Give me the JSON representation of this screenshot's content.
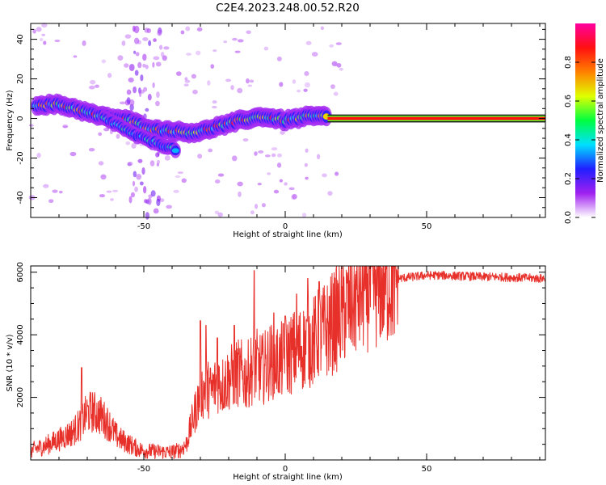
{
  "title": "C2E4.2023.248.00.52.R20",
  "colors": {
    "snr_line": "#e8302a",
    "spectrogram_background": "#ffffff",
    "frame": "#000000"
  },
  "chart_data": [
    {
      "type": "heatmap",
      "xlabel": "Height of straight line (km)",
      "ylabel": "Frequency (Hz)",
      "xlim": [
        -90,
        92
      ],
      "ylim": [
        -50,
        48
      ],
      "xticks": [
        -50,
        0,
        50
      ],
      "xtick_labels": [
        "-50",
        "0",
        "50"
      ],
      "yticks": [
        -40,
        -20,
        0,
        20,
        40
      ],
      "ytick_labels": [
        "-40",
        "-20",
        "0",
        "20",
        "40"
      ],
      "grid": false,
      "colormap": "rainbow (white at 0, purple-blue-cyan-green-yellow-red-magenta to 1)",
      "main_track": {
        "description": "spectral ridge (Hz) vs height (km)",
        "x": [
          -88,
          -80,
          -74,
          -70,
          -65,
          -60,
          -55,
          -50,
          -45,
          -40,
          -36,
          -32,
          -28,
          -24,
          -20,
          -16,
          -12,
          -8,
          -4,
          0,
          4,
          8,
          12,
          15
        ],
        "y": [
          7,
          7,
          5,
          3,
          1,
          0,
          -1,
          -4,
          -6,
          -6,
          -7,
          -7,
          -6,
          -4,
          -3,
          -1,
          0,
          1,
          0,
          -1,
          0,
          1,
          1,
          1
        ]
      },
      "secondary_track": {
        "description": "weaker descending branch (Hz) vs height (km)",
        "x": [
          -64,
          -58,
          -54,
          -50,
          -46,
          -42,
          -38
        ],
        "y": [
          0,
          -4,
          -8,
          -10,
          -12,
          -14,
          -16
        ]
      },
      "steady_band": {
        "x_from": 15,
        "x_to": 92,
        "y": 0,
        "amplitude": 1.0
      }
    },
    {
      "type": "colorbar",
      "label": "Normalized spectral amplitude",
      "range": [
        0,
        1
      ],
      "ticks": [
        0.0,
        0.2,
        0.4,
        0.6,
        0.8
      ],
      "tick_labels": [
        "0.0",
        "0.2",
        "0.4",
        "0.6",
        "0.8"
      ],
      "stops": [
        "#ffffff",
        "#a020f0",
        "#2020ff",
        "#00e0ff",
        "#00ff40",
        "#e0ff00",
        "#ff8000",
        "#ff1010",
        "#ff00a0"
      ]
    },
    {
      "type": "line",
      "xlabel": "Height of straight line (km)",
      "ylabel": "SNR (10 * v/v)",
      "xlim": [
        -90,
        92
      ],
      "ylim": [
        0,
        6200
      ],
      "xticks": [
        -50,
        0,
        50
      ],
      "xtick_labels": [
        "-50",
        "0",
        "50"
      ],
      "yticks": [
        2000,
        4000,
        6000
      ],
      "ytick_labels": [
        "2000",
        "4000",
        "6000"
      ],
      "grid": false,
      "series": [
        {
          "x": [
            -90,
            -85,
            -80,
            -75,
            -72,
            -70,
            -68,
            -65,
            -62,
            -60,
            -58,
            -55,
            -52,
            -50,
            -47,
            -45,
            -42,
            -40,
            -37,
            -35,
            -33,
            -31,
            -30,
            -28,
            -26,
            -24,
            -22,
            -20,
            -18,
            -16,
            -14,
            -12,
            -10,
            -8,
            -6,
            -4,
            -2,
            0,
            2,
            4,
            6,
            8,
            10,
            12,
            14,
            16,
            18,
            20,
            22,
            24,
            26,
            28,
            30,
            33,
            36,
            40,
            45,
            50,
            55,
            60,
            65,
            70,
            75,
            80,
            85,
            90,
            92
          ],
          "y": [
            300,
            450,
            650,
            900,
            1200,
            1500,
            1550,
            1400,
            1100,
            800,
            650,
            500,
            350,
            300,
            280,
            270,
            250,
            260,
            320,
            500,
            1200,
            1800,
            2100,
            2300,
            2200,
            2500,
            2400,
            2600,
            2700,
            2800,
            2600,
            2900,
            3000,
            2900,
            3100,
            3200,
            3100,
            3300,
            3400,
            3500,
            3600,
            3700,
            3800,
            4000,
            4100,
            4300,
            4500,
            4700,
            4900,
            5100,
            5300,
            5450,
            5550,
            5650,
            5750,
            5800,
            5850,
            5900,
            5900,
            5880,
            5870,
            5850,
            5850,
            5830,
            5820,
            5800,
            5800
          ],
          "spikes": [
            {
              "x": -72,
              "y": 2950
            },
            {
              "x": -30,
              "y": 4450
            },
            {
              "x": -28,
              "y": 4300
            },
            {
              "x": -24,
              "y": 3900
            },
            {
              "x": -18,
              "y": 4300
            },
            {
              "x": -11,
              "y": 6050
            },
            {
              "x": -4,
              "y": 4700
            },
            {
              "x": 0,
              "y": 4600
            },
            {
              "x": 4,
              "y": 5300
            },
            {
              "x": 8,
              "y": 5800
            },
            {
              "x": 12,
              "y": 5700
            }
          ]
        }
      ]
    }
  ]
}
